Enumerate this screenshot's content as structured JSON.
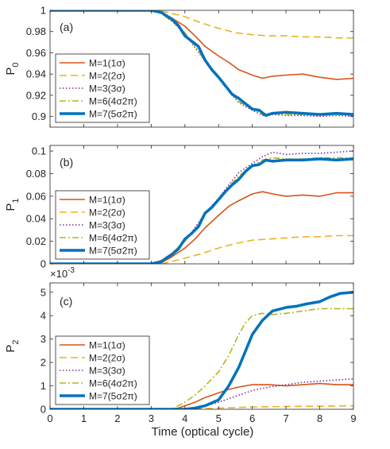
{
  "figure": {
    "xlabel": "Time (optical cycle)"
  },
  "colors": {
    "M1": "#d95319",
    "M2": "#edb120",
    "M3": "#7e2f8e",
    "M6": "#b6b61a",
    "M7": "#0072bd",
    "axis": "#262626"
  },
  "chart_data": [
    {
      "type": "line",
      "panel_label": "(a)",
      "ylabel": "P",
      "ylabel_sub": "0",
      "xlim": [
        0,
        9
      ],
      "ylim": [
        0.89,
        1.0
      ],
      "xticks": [
        0,
        1,
        2,
        3,
        4,
        5,
        6,
        7,
        8,
        9
      ],
      "yticks": [
        0.9,
        0.92,
        0.94,
        0.96,
        0.98,
        1
      ],
      "ytick_labels": [
        "0.9",
        "0.92",
        "0.94",
        "0.96",
        "0.98",
        "1"
      ],
      "legend_position": "bottom-left",
      "series": [
        {
          "name": "M=1(1σ)",
          "style": "solid",
          "x": [
            0,
            3.0,
            3.3,
            3.6,
            4.0,
            4.3,
            4.6,
            5.0,
            5.3,
            5.6,
            6.0,
            6.3,
            6.6,
            7.0,
            7.5,
            8.0,
            8.5,
            9.0
          ],
          "y": [
            1,
            1,
            0.998,
            0.993,
            0.985,
            0.976,
            0.966,
            0.957,
            0.951,
            0.944,
            0.939,
            0.936,
            0.938,
            0.939,
            0.94,
            0.937,
            0.935,
            0.936
          ]
        },
        {
          "name": "M=2(2σ)",
          "style": "dashed",
          "x": [
            0,
            3.2,
            3.5,
            4.0,
            4.5,
            5.0,
            5.5,
            6.0,
            6.5,
            7.0,
            7.5,
            8.0,
            8.5,
            9.0
          ],
          "y": [
            1,
            1,
            0.998,
            0.994,
            0.988,
            0.983,
            0.979,
            0.977,
            0.976,
            0.976,
            0.975,
            0.975,
            0.974,
            0.974
          ]
        },
        {
          "name": "M=3(3σ)",
          "style": "dotted",
          "x": [
            0,
            3.0,
            3.3,
            3.6,
            4.0,
            4.3,
            4.6,
            5.0,
            5.3,
            5.6,
            6.0,
            6.3,
            6.6,
            7.0,
            7.5,
            8.0,
            8.5,
            9.0
          ],
          "y": [
            1,
            1,
            0.997,
            0.99,
            0.978,
            0.965,
            0.952,
            0.937,
            0.924,
            0.913,
            0.906,
            0.901,
            0.902,
            0.901,
            0.901,
            0.9,
            0.901,
            0.9
          ]
        },
        {
          "name": "M=6(4σ2π)",
          "style": "dashdot",
          "x": [
            0,
            3.0,
            3.3,
            3.6,
            4.0,
            4.3,
            4.6,
            5.0,
            5.3,
            5.6,
            6.0,
            6.3,
            6.6,
            7.0,
            7.5,
            8.0,
            8.5,
            9.0
          ],
          "y": [
            1,
            1,
            0.997,
            0.99,
            0.979,
            0.966,
            0.953,
            0.938,
            0.925,
            0.914,
            0.907,
            0.902,
            0.903,
            0.902,
            0.902,
            0.901,
            0.902,
            0.901
          ]
        },
        {
          "name": "M=7(5σ2π)",
          "style": "thick",
          "x": [
            0,
            3.0,
            3.3,
            3.6,
            3.8,
            4.0,
            4.2,
            4.4,
            4.6,
            4.8,
            5.0,
            5.2,
            5.4,
            5.6,
            5.8,
            6.0,
            6.2,
            6.4,
            6.6,
            7.0,
            7.5,
            8.0,
            8.5,
            9.0
          ],
          "y": [
            1,
            1,
            0.998,
            0.992,
            0.986,
            0.976,
            0.971,
            0.966,
            0.953,
            0.944,
            0.937,
            0.929,
            0.921,
            0.917,
            0.912,
            0.907,
            0.906,
            0.901,
            0.903,
            0.904,
            0.903,
            0.902,
            0.903,
            0.902
          ]
        }
      ]
    },
    {
      "type": "line",
      "panel_label": "(b)",
      "ylabel": "P",
      "ylabel_sub": "1",
      "xlim": [
        0,
        9
      ],
      "ylim": [
        0,
        0.105
      ],
      "xticks": [
        0,
        1,
        2,
        3,
        4,
        5,
        6,
        7,
        8,
        9
      ],
      "yticks": [
        0,
        0.02,
        0.04,
        0.06,
        0.08,
        0.1
      ],
      "ytick_labels": [
        "0",
        "0.02",
        "0.04",
        "0.06",
        "0.08",
        "0.1"
      ],
      "legend_position": "bottom-left",
      "series": [
        {
          "name": "M=1(1σ)",
          "style": "solid",
          "x": [
            0,
            3.0,
            3.3,
            3.6,
            4.0,
            4.3,
            4.6,
            5.0,
            5.3,
            5.6,
            6.0,
            6.3,
            6.6,
            7.0,
            7.5,
            8.0,
            8.5,
            9.0
          ],
          "y": [
            0,
            0,
            0.001,
            0.006,
            0.014,
            0.022,
            0.032,
            0.043,
            0.051,
            0.056,
            0.062,
            0.064,
            0.062,
            0.06,
            0.061,
            0.06,
            0.063,
            0.063
          ]
        },
        {
          "name": "M=2(2σ)",
          "style": "dashed",
          "x": [
            0,
            3.3,
            3.6,
            4.0,
            4.5,
            5.0,
            5.5,
            6.0,
            6.5,
            7.0,
            7.5,
            8.0,
            8.5,
            9.0
          ],
          "y": [
            0,
            0,
            0.002,
            0.005,
            0.009,
            0.014,
            0.018,
            0.021,
            0.022,
            0.023,
            0.024,
            0.024,
            0.025,
            0.025
          ]
        },
        {
          "name": "M=3(3σ)",
          "style": "dotted",
          "x": [
            0,
            3.0,
            3.3,
            3.6,
            4.0,
            4.3,
            4.6,
            5.0,
            5.3,
            5.6,
            6.0,
            6.3,
            6.6,
            7.0,
            7.5,
            8.0,
            8.5,
            9.0
          ],
          "y": [
            0,
            0,
            0.003,
            0.009,
            0.02,
            0.032,
            0.045,
            0.058,
            0.07,
            0.081,
            0.089,
            0.095,
            0.099,
            0.097,
            0.098,
            0.098,
            0.099,
            0.1
          ]
        },
        {
          "name": "M=6(4σ2π)",
          "style": "dashdot",
          "x": [
            0,
            3.0,
            3.3,
            3.6,
            4.0,
            4.3,
            4.6,
            5.0,
            5.3,
            5.6,
            6.0,
            6.3,
            6.6,
            7.0,
            7.5,
            8.0,
            8.5,
            9.0
          ],
          "y": [
            0,
            0,
            0.003,
            0.009,
            0.02,
            0.031,
            0.044,
            0.057,
            0.068,
            0.078,
            0.087,
            0.092,
            0.094,
            0.093,
            0.093,
            0.094,
            0.094,
            0.094
          ]
        },
        {
          "name": "M=7(5σ2π)",
          "style": "thick",
          "x": [
            0,
            3.0,
            3.3,
            3.6,
            3.8,
            4.0,
            4.2,
            4.4,
            4.6,
            4.8,
            5.0,
            5.2,
            5.4,
            5.6,
            5.8,
            6.0,
            6.2,
            6.4,
            6.6,
            7.0,
            7.5,
            8.0,
            8.5,
            9.0
          ],
          "y": [
            0,
            0,
            0.002,
            0.008,
            0.013,
            0.022,
            0.027,
            0.033,
            0.045,
            0.05,
            0.057,
            0.064,
            0.07,
            0.075,
            0.082,
            0.087,
            0.088,
            0.092,
            0.091,
            0.092,
            0.092,
            0.093,
            0.092,
            0.093
          ]
        }
      ]
    },
    {
      "type": "line",
      "panel_label": "(c)",
      "ylabel": "P",
      "ylabel_sub": "2",
      "scale_label": "×10",
      "scale_exp": "-3",
      "xlim": [
        0,
        9
      ],
      "ylim": [
        0,
        5.4
      ],
      "xticks": [
        0,
        1,
        2,
        3,
        4,
        5,
        6,
        7,
        8,
        9
      ],
      "yticks": [
        0,
        1,
        2,
        3,
        4,
        5
      ],
      "ytick_labels": [
        "0",
        "1",
        "2",
        "3",
        "4",
        "5"
      ],
      "legend_position": "bottom-left",
      "series": [
        {
          "name": "M=1(1σ)",
          "style": "solid",
          "x": [
            0,
            3.5,
            3.8,
            4.0,
            4.3,
            4.6,
            5.0,
            5.3,
            5.6,
            6.0,
            6.5,
            7.0,
            7.5,
            8.0,
            8.5,
            9.0
          ],
          "y": [
            0,
            0,
            0.05,
            0.15,
            0.3,
            0.5,
            0.7,
            0.85,
            0.95,
            1.05,
            1.05,
            1.0,
            1.05,
            1.1,
            1.05,
            1.05
          ]
        },
        {
          "name": "M=2(2σ)",
          "style": "dashed",
          "x": [
            0,
            4.0,
            5.0,
            6.0,
            7.0,
            8.0,
            9.0
          ],
          "y": [
            0,
            0,
            0.05,
            0.1,
            0.12,
            0.13,
            0.15
          ]
        },
        {
          "name": "M=3(3σ)",
          "style": "dotted",
          "x": [
            0,
            4.0,
            4.5,
            5.0,
            5.5,
            6.0,
            6.5,
            7.0,
            7.5,
            8.0,
            8.5,
            9.0
          ],
          "y": [
            0,
            0,
            0.1,
            0.3,
            0.55,
            0.8,
            0.95,
            1.05,
            1.15,
            1.2,
            1.25,
            1.3
          ]
        },
        {
          "name": "M=6(4σ2π)",
          "style": "dashdot",
          "x": [
            0,
            3.6,
            4.0,
            4.3,
            4.6,
            5.0,
            5.3,
            5.6,
            5.8,
            6.0,
            6.3,
            6.6,
            7.0,
            7.5,
            8.0,
            8.5,
            9.0
          ],
          "y": [
            0,
            0,
            0.3,
            0.6,
            1.0,
            1.6,
            2.3,
            3.2,
            3.7,
            4.0,
            4.1,
            4.05,
            4.1,
            4.2,
            4.3,
            4.3,
            4.3
          ]
        },
        {
          "name": "M=7(5σ2π)",
          "style": "thick",
          "x": [
            0,
            4.0,
            4.3,
            4.6,
            5.0,
            5.3,
            5.6,
            5.8,
            6.0,
            6.3,
            6.6,
            7.0,
            7.3,
            7.6,
            8.0,
            8.3,
            8.6,
            9.0
          ],
          "y": [
            0,
            0,
            0.05,
            0.15,
            0.4,
            1.0,
            1.8,
            2.5,
            3.2,
            3.8,
            4.2,
            4.35,
            4.4,
            4.5,
            4.6,
            4.8,
            4.95,
            5.0
          ]
        }
      ]
    }
  ]
}
